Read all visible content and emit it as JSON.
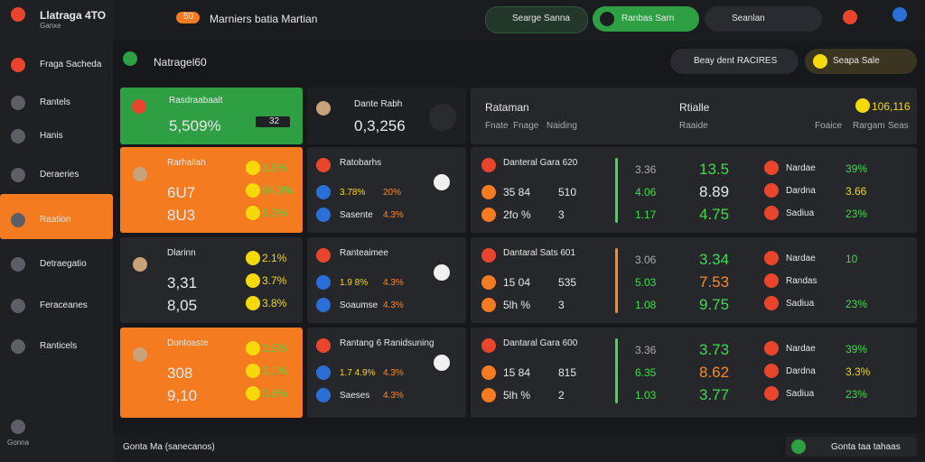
{
  "sidebar": {
    "brand": "Llatraga 4TO",
    "brand_sub": "Ganxe",
    "items": [
      "Fraga Sacheda",
      "Rantels",
      "Hanis",
      "Deraeries",
      "Raation",
      "Detraegatio",
      "Feraceanes",
      "Ranticels"
    ],
    "footer": "Gonna"
  },
  "topbar": {
    "badge": "50",
    "tab": "Marniers batia Martian",
    "pills": [
      "Searge Sanna",
      "Ranbas Sarn"
    ],
    "search": "Seanlan"
  },
  "header": {
    "title": "Natragel60",
    "filter": "Beay dent RACIRES",
    "select": "Seapa Sale"
  },
  "featured": {
    "name": "Rasdraabaalt",
    "value": "5,509%",
    "tag": "32"
  },
  "player_cards": [
    {
      "name": "Rarhallah",
      "values": [
        "6U7",
        "8U3"
      ],
      "stats": [
        "3.8%",
        "84.3%",
        "9.3%"
      ]
    },
    {
      "name": "Dlarinn",
      "values": [
        "3,31",
        "8,05"
      ],
      "stats": [
        "2.1%",
        "3.7%",
        "3.8%"
      ]
    },
    {
      "name": "Dontoaste",
      "values": [
        "308",
        "9,10"
      ],
      "stats": [
        "3.5%",
        "3.1%",
        "3.8%"
      ]
    }
  ],
  "summary": {
    "name": "Dante Rabh",
    "value": "0,3,256"
  },
  "match_cards": [
    {
      "title": "Ratobarhs",
      "rows": [
        [
          "3.78%",
          "20%"
        ],
        [
          "Sasente",
          "4.3%"
        ]
      ]
    },
    {
      "title": "Ranteaimee",
      "rows": [
        [
          "1.9 8%",
          "4.3%"
        ],
        [
          "Soaumse",
          "4.3%"
        ]
      ]
    },
    {
      "title": "Rantang 6 Ranidsuning",
      "rows": [
        [
          "1.7 4.9%",
          "4.3%"
        ],
        [
          "Saeses",
          "4.3%"
        ]
      ]
    }
  ],
  "panel": {
    "title": "Rataman",
    "cols": [
      "Fnate",
      "Fnage",
      "Naiding"
    ],
    "title2": "Rtialle",
    "sub2": "Raaide",
    "total": "106,116",
    "cols2": [
      "Foaice",
      "Rargam",
      "Seas"
    ],
    "rows": [
      {
        "title": "Danteral Gara 620",
        "lines": [
          [
            "35 84",
            "510"
          ],
          [
            "2fo %",
            "3"
          ]
        ],
        "odds": [
          "3.36",
          "4.06",
          "1.17"
        ],
        "values": [
          "13.5",
          "8.89",
          "4.75"
        ],
        "picks": [
          [
            "Nardae",
            "39%"
          ],
          [
            "Dardna",
            "3.66"
          ],
          [
            "Sadiua",
            "23%"
          ]
        ]
      },
      {
        "title": "Dantaral Sats 601",
        "lines": [
          [
            "15 04",
            "535"
          ],
          [
            "5lh %",
            "3"
          ]
        ],
        "odds": [
          "3.06",
          "5.03",
          "1.08"
        ],
        "values": [
          "3.34",
          "7.53",
          "9.75"
        ],
        "picks": [
          [
            "Nardae",
            "10"
          ],
          [
            "Randas",
            ""
          ],
          [
            "Sadiua",
            "23%"
          ]
        ]
      },
      {
        "title": "Dantaral Gara 600",
        "lines": [
          [
            "15 84",
            "815"
          ],
          [
            "5lh %",
            "2"
          ]
        ],
        "odds": [
          "3.36",
          "6.35",
          "1.03"
        ],
        "values": [
          "3.73",
          "8.62",
          "3.77"
        ],
        "picks": [
          [
            "Nardae",
            "39%"
          ],
          [
            "Dardna",
            "3.3%"
          ],
          [
            "Sadiua",
            "23%"
          ]
        ]
      }
    ]
  },
  "footer": {
    "left": "Gonta Ma (sanecanos)",
    "right": "Gonta taa tahaas"
  }
}
